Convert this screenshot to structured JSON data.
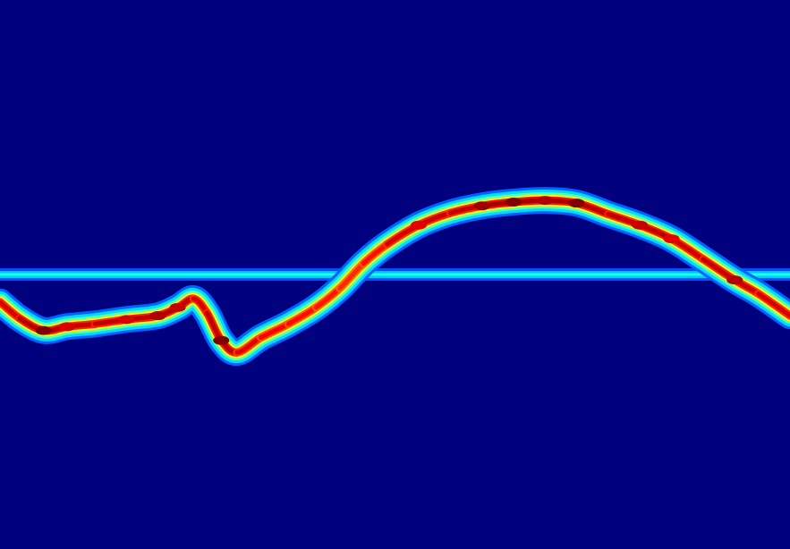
{
  "chart_data": {
    "type": "heatmap",
    "title": "",
    "xlabel": "",
    "ylabel": "",
    "grid": false,
    "legend": "none",
    "colormap": "jet",
    "background_color": "#00007f",
    "xlim": [
      0,
      1
    ],
    "ylim": [
      0,
      1
    ],
    "series": [
      {
        "kind": "reference-line",
        "y": 0.5,
        "intensity": 0.35
      },
      {
        "kind": "trace",
        "points": [
          {
            "x": 0.0,
            "y": 0.45,
            "v": 0.72
          },
          {
            "x": 0.025,
            "y": 0.42,
            "v": 0.82
          },
          {
            "x": 0.055,
            "y": 0.398,
            "v": 0.95
          },
          {
            "x": 0.085,
            "y": 0.405,
            "v": 0.86
          },
          {
            "x": 0.12,
            "y": 0.41,
            "v": 0.82
          },
          {
            "x": 0.16,
            "y": 0.418,
            "v": 0.86
          },
          {
            "x": 0.2,
            "y": 0.425,
            "v": 0.9
          },
          {
            "x": 0.225,
            "y": 0.44,
            "v": 0.88
          },
          {
            "x": 0.245,
            "y": 0.456,
            "v": 0.82
          },
          {
            "x": 0.262,
            "y": 0.43,
            "v": 0.72
          },
          {
            "x": 0.28,
            "y": 0.38,
            "v": 0.98
          },
          {
            "x": 0.3,
            "y": 0.358,
            "v": 0.78
          },
          {
            "x": 0.33,
            "y": 0.385,
            "v": 0.65
          },
          {
            "x": 0.365,
            "y": 0.41,
            "v": 0.6
          },
          {
            "x": 0.4,
            "y": 0.44,
            "v": 0.58
          },
          {
            "x": 0.43,
            "y": 0.475,
            "v": 0.52
          },
          {
            "x": 0.46,
            "y": 0.52,
            "v": 0.45
          },
          {
            "x": 0.49,
            "y": 0.555,
            "v": 0.7
          },
          {
            "x": 0.53,
            "y": 0.59,
            "v": 0.85
          },
          {
            "x": 0.57,
            "y": 0.612,
            "v": 0.75
          },
          {
            "x": 0.61,
            "y": 0.625,
            "v": 0.92
          },
          {
            "x": 0.65,
            "y": 0.632,
            "v": 0.98
          },
          {
            "x": 0.69,
            "y": 0.635,
            "v": 0.9
          },
          {
            "x": 0.73,
            "y": 0.63,
            "v": 0.95
          },
          {
            "x": 0.77,
            "y": 0.61,
            "v": 0.8
          },
          {
            "x": 0.81,
            "y": 0.59,
            "v": 0.88
          },
          {
            "x": 0.85,
            "y": 0.565,
            "v": 0.85
          },
          {
            "x": 0.89,
            "y": 0.528,
            "v": 0.75
          },
          {
            "x": 0.93,
            "y": 0.49,
            "v": 0.9
          },
          {
            "x": 0.96,
            "y": 0.465,
            "v": 0.72
          },
          {
            "x": 1.0,
            "y": 0.425,
            "v": 0.82
          }
        ]
      }
    ]
  }
}
